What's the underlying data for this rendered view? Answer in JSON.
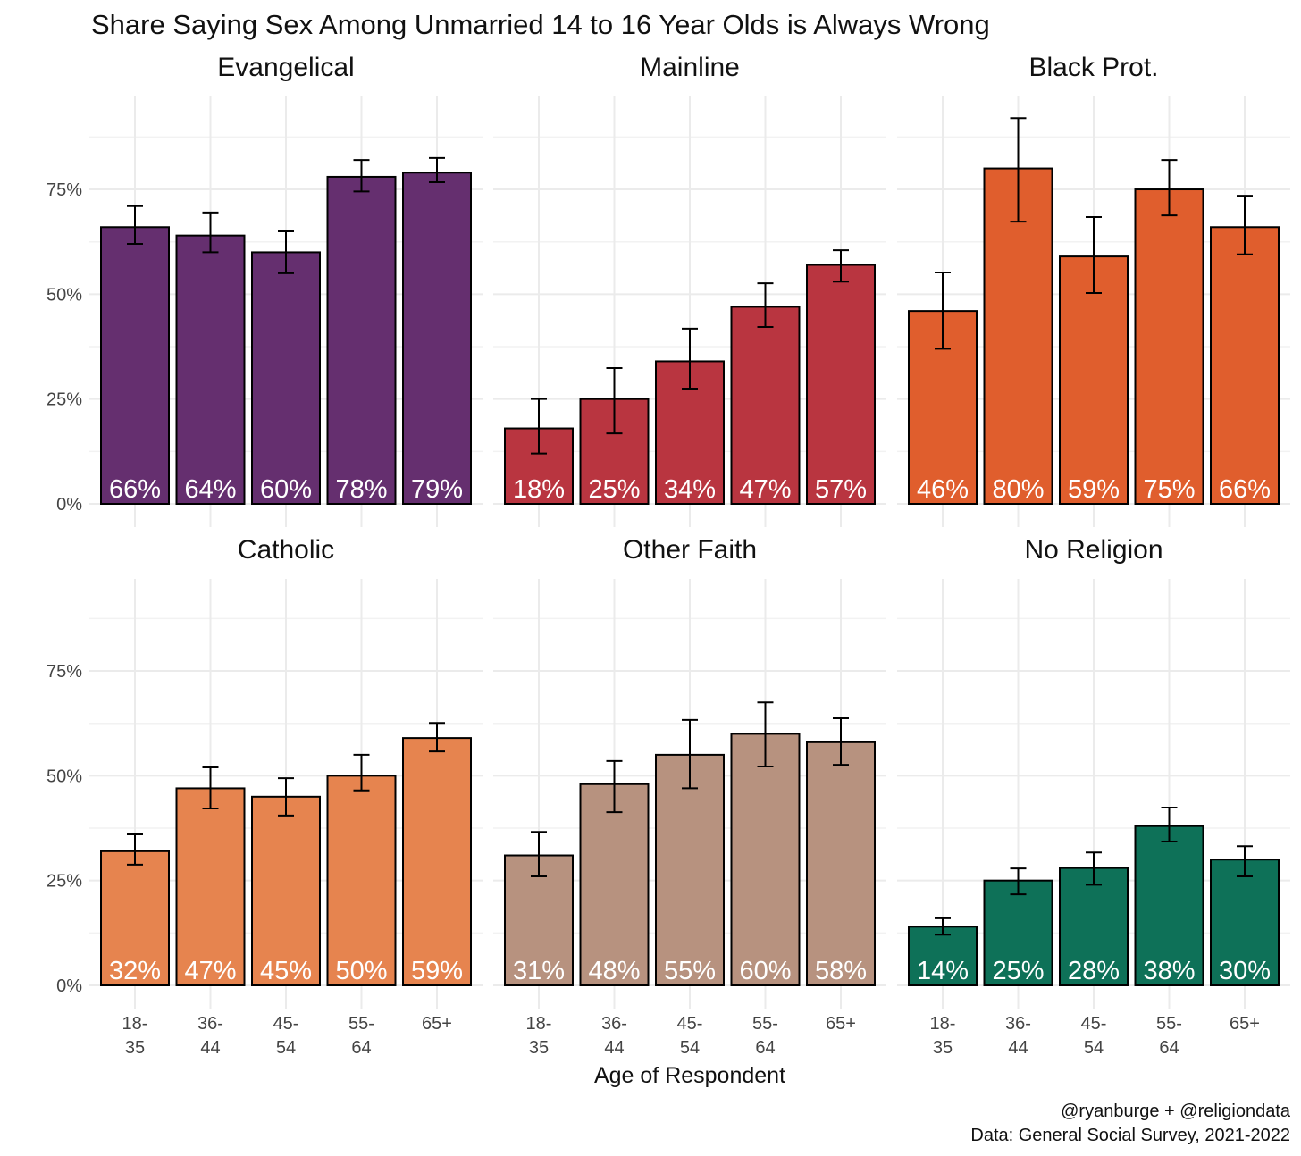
{
  "chart_data": {
    "type": "bar",
    "title": "Share Saying Sex Among Unmarried 14 to 16 Year Olds is Always Wrong",
    "xlabel": "Age of Respondent",
    "ylabel": "",
    "ylim": [
      0,
      95
    ],
    "yticks": [
      "0%",
      "25%",
      "50%",
      "75%"
    ],
    "ytick_values": [
      0,
      25,
      50,
      75
    ],
    "grid": true,
    "categories": [
      "18-35",
      "36-44",
      "45-54",
      "55-64",
      "65+"
    ],
    "category_lines": [
      [
        "18-",
        "35"
      ],
      [
        "36-",
        "44"
      ],
      [
        "45-",
        "54"
      ],
      [
        "55-",
        "64"
      ],
      [
        "65+",
        ""
      ]
    ],
    "panels": [
      {
        "name": "Evangelical",
        "color": "#652f6f",
        "values": [
          66,
          64,
          60,
          78,
          79
        ],
        "labels": [
          "66%",
          "64%",
          "60%",
          "78%",
          "79%"
        ],
        "ci_low": [
          62,
          60,
          55,
          74.5,
          76.7
        ],
        "ci_high": [
          71,
          69.5,
          65,
          82,
          82.5
        ]
      },
      {
        "name": "Mainline",
        "color": "#b93540",
        "values": [
          18,
          25,
          34,
          47,
          57
        ],
        "labels": [
          "18%",
          "25%",
          "34%",
          "47%",
          "57%"
        ],
        "ci_low": [
          12,
          16.8,
          27.5,
          42.2,
          53
        ],
        "ci_high": [
          25,
          32.4,
          41.8,
          52.6,
          60.5
        ]
      },
      {
        "name": "Black Prot.",
        "color": "#e05e2d",
        "values": [
          46,
          80,
          59,
          75,
          66
        ],
        "labels": [
          "46%",
          "80%",
          "59%",
          "75%",
          "66%"
        ],
        "ci_low": [
          37,
          67.3,
          50.3,
          68.8,
          59.5
        ],
        "ci_high": [
          55.2,
          92,
          68.4,
          82,
          73.5
        ]
      },
      {
        "name": "Catholic",
        "color": "#e6844f",
        "values": [
          32,
          47,
          45,
          50,
          59
        ],
        "labels": [
          "32%",
          "47%",
          "45%",
          "50%",
          "59%"
        ],
        "ci_low": [
          28.8,
          42.2,
          40.5,
          46.5,
          55.8
        ],
        "ci_high": [
          36,
          52,
          49.4,
          55,
          62.6
        ]
      },
      {
        "name": "Other Faith",
        "color": "#b7927f",
        "values": [
          31,
          48,
          55,
          60,
          58
        ],
        "labels": [
          "31%",
          "48%",
          "55%",
          "60%",
          "58%"
        ],
        "ci_low": [
          26,
          41.3,
          47,
          52.2,
          52.6
        ],
        "ci_high": [
          36.6,
          53.5,
          63.3,
          67.5,
          63.7
        ]
      },
      {
        "name": "No Religion",
        "color": "#0e7158",
        "values": [
          14,
          25,
          28,
          38,
          30
        ],
        "labels": [
          "14%",
          "25%",
          "28%",
          "38%",
          "30%"
        ],
        "ci_low": [
          12.1,
          21.7,
          24,
          34.3,
          26
        ],
        "ci_high": [
          16,
          27.9,
          31.7,
          42.4,
          33.2
        ]
      }
    ],
    "caption": [
      "@ryanburge + @religiondata",
      "Data: General Social Survey, 2021-2022"
    ]
  }
}
